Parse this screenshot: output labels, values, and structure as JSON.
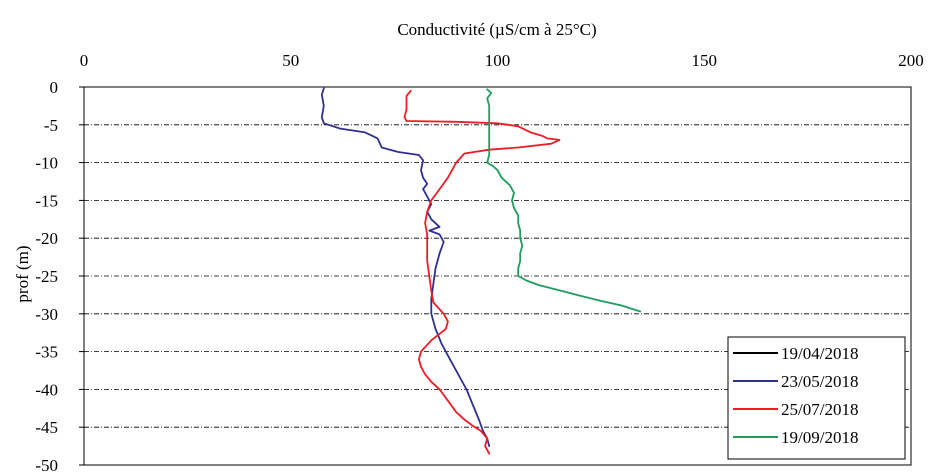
{
  "chart_data": {
    "type": "line",
    "title": "",
    "xlabel": "Conductivité (µS/cm à 25°C)",
    "ylabel": "prof (m)",
    "xlim": [
      0,
      200
    ],
    "ylim": [
      -50,
      0
    ],
    "x_ticks": [
      0,
      50,
      100,
      150,
      200
    ],
    "y_ticks": [
      0,
      -5,
      -10,
      -15,
      -20,
      -25,
      -30,
      -35,
      -40,
      -45,
      -50
    ],
    "x_axis_position": "top",
    "grid": "horizontal dash-dot",
    "legend_position": "bottom-right",
    "series": [
      {
        "name": "19/04/2018",
        "color": "#000000",
        "points": []
      },
      {
        "name": "23/05/2018",
        "color": "#2e3192",
        "points": [
          [
            58,
            -0.2
          ],
          [
            57.5,
            -1
          ],
          [
            58,
            -2.5
          ],
          [
            57.5,
            -4
          ],
          [
            58,
            -4.8
          ],
          [
            62,
            -5.5
          ],
          [
            68,
            -6
          ],
          [
            71,
            -6.8
          ],
          [
            72,
            -8
          ],
          [
            76,
            -8.6
          ],
          [
            81,
            -9
          ],
          [
            82,
            -9.7
          ],
          [
            81.5,
            -11
          ],
          [
            82,
            -12
          ],
          [
            83,
            -12.8
          ],
          [
            82,
            -13.5
          ],
          [
            83,
            -14.5
          ],
          [
            84,
            -15.5
          ],
          [
            83,
            -16.5
          ],
          [
            84,
            -17.5
          ],
          [
            86,
            -18.5
          ],
          [
            83.5,
            -19
          ],
          [
            86,
            -19.5
          ],
          [
            87,
            -20.5
          ],
          [
            86,
            -22
          ],
          [
            85,
            -24
          ],
          [
            84.5,
            -26
          ],
          [
            84,
            -28
          ],
          [
            84,
            -30
          ],
          [
            85,
            -32
          ],
          [
            86.5,
            -34
          ],
          [
            88.5,
            -36
          ],
          [
            90.5,
            -38
          ],
          [
            92.5,
            -40
          ],
          [
            94,
            -42
          ],
          [
            95.5,
            -44
          ],
          [
            96.5,
            -45.5
          ],
          [
            97.5,
            -46.5
          ],
          [
            98,
            -47.5
          ]
        ]
      },
      {
        "name": "25/07/2018",
        "color": "#ee1c25",
        "points": [
          [
            79,
            -0.5
          ],
          [
            78,
            -1.2
          ],
          [
            78,
            -3
          ],
          [
            77.5,
            -4
          ],
          [
            78,
            -4.5
          ],
          [
            90,
            -4.6
          ],
          [
            100,
            -4.8
          ],
          [
            105,
            -5.2
          ],
          [
            108,
            -6
          ],
          [
            111,
            -6.5
          ],
          [
            112,
            -6.8
          ],
          [
            115,
            -7
          ],
          [
            113,
            -7.5
          ],
          [
            105,
            -8
          ],
          [
            98,
            -8.3
          ],
          [
            92,
            -8.8
          ],
          [
            90,
            -10
          ],
          [
            88,
            -12
          ],
          [
            86,
            -13.5
          ],
          [
            84,
            -15
          ],
          [
            83,
            -16.5
          ],
          [
            82.5,
            -18
          ],
          [
            83,
            -19.5
          ],
          [
            83,
            -21
          ],
          [
            83,
            -23
          ],
          [
            83.5,
            -25
          ],
          [
            84,
            -27
          ],
          [
            84.5,
            -28.5
          ],
          [
            87,
            -30
          ],
          [
            88,
            -31
          ],
          [
            87.5,
            -32
          ],
          [
            84,
            -33.5
          ],
          [
            81.5,
            -35
          ],
          [
            81,
            -36
          ],
          [
            81.5,
            -37
          ],
          [
            82.5,
            -38
          ],
          [
            84,
            -39
          ],
          [
            86,
            -40
          ],
          [
            88,
            -41.5
          ],
          [
            90,
            -43
          ],
          [
            92,
            -44
          ],
          [
            94,
            -44.8
          ],
          [
            96,
            -45.5
          ],
          [
            97.5,
            -46.5
          ],
          [
            97,
            -47.5
          ],
          [
            98,
            -48.5
          ]
        ]
      },
      {
        "name": "19/09/2018",
        "color": "#1f9c5e",
        "points": [
          [
            97.5,
            -0.3
          ],
          [
            98.5,
            -0.8
          ],
          [
            97.5,
            -1.5
          ],
          [
            98,
            -2.5
          ],
          [
            98,
            -4
          ],
          [
            98,
            -5.5
          ],
          [
            98,
            -7
          ],
          [
            98,
            -9
          ],
          [
            97.5,
            -10
          ],
          [
            99,
            -10.5
          ],
          [
            100,
            -11
          ],
          [
            101,
            -12
          ],
          [
            103,
            -13
          ],
          [
            104,
            -14
          ],
          [
            103.5,
            -15
          ],
          [
            104,
            -16
          ],
          [
            105,
            -17
          ],
          [
            105,
            -18
          ],
          [
            105.5,
            -19
          ],
          [
            105.5,
            -20
          ],
          [
            106,
            -21
          ],
          [
            105.5,
            -22
          ],
          [
            105.5,
            -23
          ],
          [
            105,
            -24
          ],
          [
            105,
            -25
          ],
          [
            107,
            -25.6
          ],
          [
            110,
            -26.2
          ],
          [
            115,
            -26.9
          ],
          [
            120,
            -27.6
          ],
          [
            125,
            -28.3
          ],
          [
            130,
            -28.9
          ],
          [
            134.5,
            -29.7
          ]
        ]
      }
    ]
  }
}
